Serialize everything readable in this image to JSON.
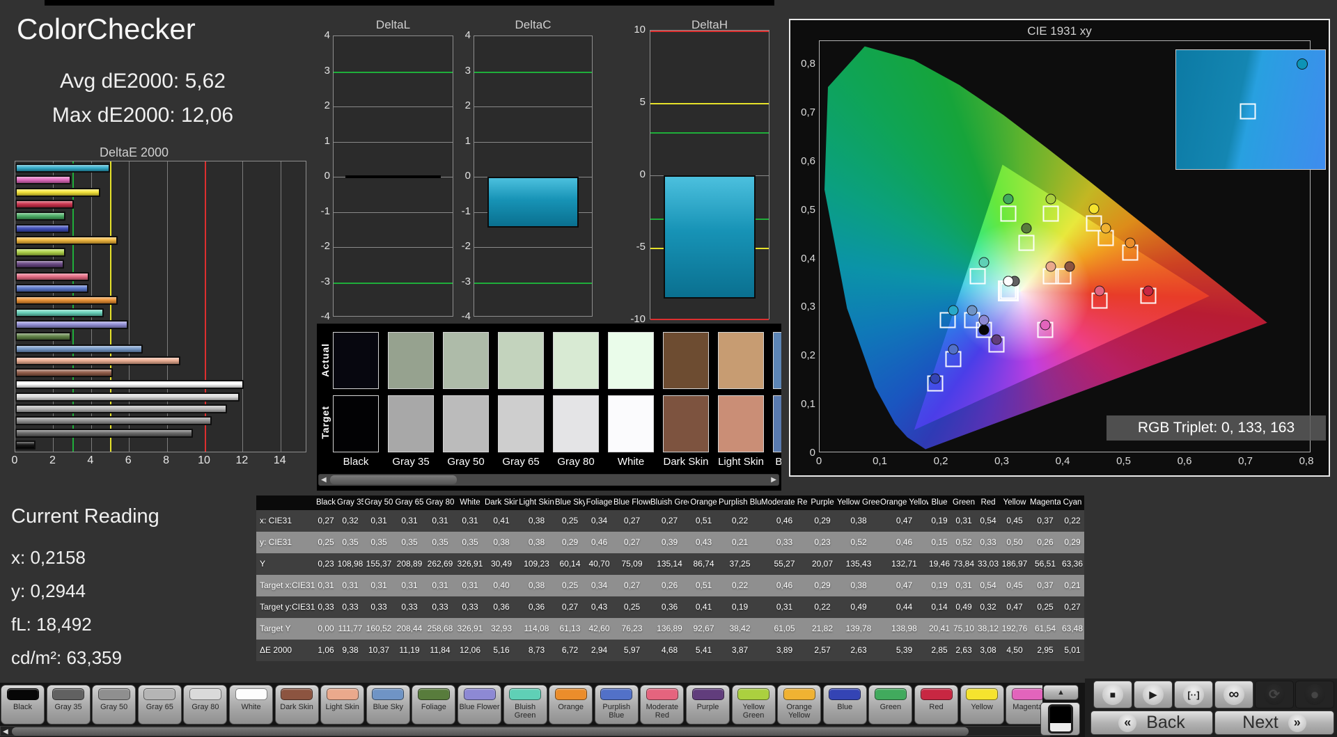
{
  "header": {
    "title": "ColorChecker",
    "avg_line": "Avg dE2000: 5,62",
    "max_line": "Max dE2000: 12,06"
  },
  "current_reading": {
    "title": "Current Reading",
    "x_line": "x: 0,2158",
    "y_line": "y: 0,2944",
    "fl_line": "fL: 18,492",
    "cd_line": "cd/m²: 63,359"
  },
  "patches": [
    {
      "name": "Black",
      "chip": "#060606",
      "actual_swatch": "#07070f",
      "target_swatch": "#020204",
      "x": 0.27,
      "y": 0.25,
      "Y": "0,23",
      "tx": 0.31,
      "ty": 0.33,
      "tY": "0,00",
      "de": 1.06
    },
    {
      "name": "Gray 35",
      "chip": "#616161",
      "actual_swatch": "#96a28f",
      "target_swatch": "#a8a8a8",
      "x": 0.32,
      "y": 0.35,
      "Y": "108,98",
      "tx": 0.31,
      "ty": 0.33,
      "tY": "111,77",
      "de": 9.38
    },
    {
      "name": "Gray 50",
      "chip": "#8f8f8f",
      "actual_swatch": "#aebba9",
      "target_swatch": "#bbbbbb",
      "x": 0.31,
      "y": 0.35,
      "Y": "155,37",
      "tx": 0.31,
      "ty": 0.33,
      "tY": "160,52",
      "de": 10.37
    },
    {
      "name": "Gray 65",
      "chip": "#b5b5b5",
      "actual_swatch": "#c3d3bd",
      "target_swatch": "#cecece",
      "x": 0.31,
      "y": 0.35,
      "Y": "208,89",
      "tx": 0.31,
      "ty": 0.33,
      "tY": "208,44",
      "de": 11.19
    },
    {
      "name": "Gray 80",
      "chip": "#dadada",
      "actual_swatch": "#d8ead3",
      "target_swatch": "#e4e4e6",
      "x": 0.31,
      "y": 0.35,
      "Y": "262,69",
      "tx": 0.31,
      "ty": 0.33,
      "tY": "258,68",
      "de": 11.84
    },
    {
      "name": "White",
      "chip": "#fdfdfd",
      "actual_swatch": "#eafcea",
      "target_swatch": "#fbfbfd",
      "x": 0.31,
      "y": 0.35,
      "Y": "326,91",
      "tx": 0.31,
      "ty": 0.33,
      "tY": "326,91",
      "de": 12.06
    },
    {
      "name": "Dark Skin",
      "chip": "#8c5440",
      "actual_swatch": "#6d4c31",
      "target_swatch": "#7d533f",
      "x": 0.41,
      "y": 0.38,
      "Y": "30,49",
      "tx": 0.4,
      "ty": 0.36,
      "tY": "32,93",
      "de": 5.16
    },
    {
      "name": "Light Skin",
      "chip": "#eaa98c",
      "actual_swatch": "#c79c72",
      "target_swatch": "#ca8e76",
      "x": 0.38,
      "y": 0.38,
      "Y": "109,23",
      "tx": 0.38,
      "ty": 0.36,
      "tY": "114,08",
      "de": 8.73
    },
    {
      "name": "Blue Sky",
      "chip": "#6f94c5",
      "actual_swatch": "#5c85b5",
      "target_swatch": "#597bb0",
      "x": 0.25,
      "y": 0.29,
      "Y": "60,14",
      "tx": 0.25,
      "ty": 0.27,
      "tY": "61,13",
      "de": 6.72
    },
    {
      "name": "Foliage",
      "chip": "#587c3c",
      "x": 0.34,
      "y": 0.46,
      "Y": "40,70",
      "tx": 0.34,
      "ty": 0.43,
      "tY": "42,60",
      "de": 2.94
    },
    {
      "name": "Blue Flower",
      "chip": "#8d89d4",
      "x": 0.27,
      "y": 0.27,
      "Y": "75,09",
      "tx": 0.27,
      "ty": 0.25,
      "tY": "76,23",
      "de": 5.97
    },
    {
      "name": "Bluish Green",
      "chip": "#5fd0b6",
      "x": 0.27,
      "y": 0.39,
      "Y": "135,14",
      "tx": 0.26,
      "ty": 0.36,
      "tY": "136,89",
      "de": 4.68
    },
    {
      "name": "Orange",
      "chip": "#eb8d2b",
      "x": 0.51,
      "y": 0.43,
      "Y": "86,74",
      "tx": 0.51,
      "ty": 0.41,
      "tY": "92,67",
      "de": 5.41
    },
    {
      "name": "Purplish Blue",
      "chip": "#5271c8",
      "x": 0.22,
      "y": 0.21,
      "Y": "37,25",
      "tx": 0.22,
      "ty": 0.19,
      "tY": "38,42",
      "de": 3.87
    },
    {
      "name": "Moderate Red",
      "chip": "#e5647e",
      "x": 0.46,
      "y": 0.33,
      "Y": "55,27",
      "tx": 0.46,
      "ty": 0.31,
      "tY": "61,05",
      "de": 3.89
    },
    {
      "name": "Purple",
      "chip": "#613d7c",
      "x": 0.29,
      "y": 0.23,
      "Y": "20,07",
      "tx": 0.29,
      "ty": 0.22,
      "tY": "21,82",
      "de": 2.57
    },
    {
      "name": "Yellow Green",
      "chip": "#abd03f",
      "x": 0.38,
      "y": 0.52,
      "Y": "135,43",
      "tx": 0.38,
      "ty": 0.49,
      "tY": "139,78",
      "de": 2.63
    },
    {
      "name": "Orange Yellow",
      "chip": "#f0b232",
      "x": 0.47,
      "y": 0.46,
      "Y": "132,71",
      "tx": 0.47,
      "ty": 0.44,
      "tY": "138,98",
      "de": 5.39
    },
    {
      "name": "Blue",
      "chip": "#3444b4",
      "x": 0.19,
      "y": 0.15,
      "Y": "19,46",
      "tx": 0.19,
      "ty": 0.14,
      "tY": "20,41",
      "de": 2.85
    },
    {
      "name": "Green",
      "chip": "#41aa5d",
      "x": 0.31,
      "y": 0.52,
      "Y": "73,84",
      "tx": 0.31,
      "ty": 0.49,
      "tY": "75,10",
      "de": 2.63
    },
    {
      "name": "Red",
      "chip": "#c82742",
      "x": 0.54,
      "y": 0.33,
      "Y": "33,03",
      "tx": 0.54,
      "ty": 0.32,
      "tY": "38,12",
      "de": 3.08
    },
    {
      "name": "Yellow",
      "chip": "#f5e32e",
      "x": 0.45,
      "y": 0.5,
      "Y": "186,97",
      "tx": 0.45,
      "ty": 0.47,
      "tY": "192,76",
      "de": 4.5
    },
    {
      "name": "Magenta",
      "chip": "#e264bc",
      "x": 0.37,
      "y": 0.26,
      "Y": "56,51",
      "tx": 0.37,
      "ty": 0.25,
      "tY": "61,54",
      "de": 2.95
    },
    {
      "name": "Cyan",
      "chip": "#28a8c8",
      "x": 0.22,
      "y": 0.29,
      "Y": "63,36",
      "tx": 0.21,
      "ty": 0.27,
      "tY": "63,48",
      "de": 5.01
    }
  ],
  "chart_data": [
    {
      "type": "bar",
      "orientation": "horizontal",
      "title": "DeltaE 2000",
      "categories": [
        "Cyan",
        "Magenta",
        "Yellow",
        "Red",
        "Green",
        "Blue",
        "Orange Yellow",
        "Yellow Green",
        "Purple",
        "Moderate Red",
        "Purplish Blue",
        "Orange",
        "Bluish Green",
        "Blue Flower",
        "Foliage",
        "Blue Sky",
        "Light Skin",
        "Dark Skin",
        "White",
        "Gray 80",
        "Gray 65",
        "Gray 50",
        "Gray 35",
        "Black"
      ],
      "values": [
        5.01,
        2.95,
        4.5,
        3.08,
        2.63,
        2.85,
        5.39,
        2.63,
        2.57,
        3.89,
        3.87,
        5.41,
        4.68,
        5.97,
        2.94,
        6.72,
        8.73,
        5.16,
        12.06,
        11.84,
        11.19,
        10.37,
        9.38,
        1.06
      ],
      "xlabel": "",
      "ylabel": "",
      "xlim": [
        0,
        15.4
      ],
      "x_ticks": [
        0,
        2,
        4,
        6,
        8,
        10,
        12,
        14
      ],
      "ref_lines": {
        "green": 3,
        "yellow": 5,
        "red": 10
      }
    },
    {
      "type": "bar",
      "title": "DeltaL",
      "values": [
        0.0
      ],
      "ylim": [
        -4,
        4
      ],
      "y_ticks": [
        4,
        3,
        2,
        1,
        0,
        -1,
        -2,
        -3,
        -4
      ],
      "ref_lines": {
        "green": [
          3,
          -3
        ]
      }
    },
    {
      "type": "bar",
      "title": "DeltaC",
      "values": [
        -1.45
      ],
      "ylim": [
        -4,
        4
      ],
      "y_ticks": [
        4,
        3,
        2,
        1,
        0,
        -1,
        -2,
        -3,
        -4
      ],
      "ref_lines": {
        "green": [
          3,
          -3
        ]
      }
    },
    {
      "type": "bar",
      "title": "DeltaH",
      "values": [
        -8.5
      ],
      "ylim": [
        -10,
        10
      ],
      "y_ticks": [
        10,
        5,
        0,
        -5,
        -10
      ],
      "ref_lines": {
        "green": [
          3,
          -3
        ],
        "yellow": [
          5,
          -5
        ],
        "red": [
          10,
          -10
        ]
      }
    },
    {
      "type": "scatter",
      "title": "CIE 1931 xy",
      "xlim": [
        0,
        0.805
      ],
      "ylim": [
        0,
        0.8444
      ],
      "note": "measured points = patches[].x/y (filled circles); target points = patches[].tx/ty (white outline squares)"
    }
  ],
  "cie": {
    "title": "CIE 1931 xy",
    "rgb_triplet": "RGB Triplet: 0, 133, 163",
    "x_ticks": [
      {
        "label": "0",
        "v": 0
      },
      {
        "label": "0,1",
        "v": 0.1
      },
      {
        "label": "0,2",
        "v": 0.2
      },
      {
        "label": "0,3",
        "v": 0.3
      },
      {
        "label": "0,4",
        "v": 0.4
      },
      {
        "label": "0,5",
        "v": 0.5
      },
      {
        "label": "0,6",
        "v": 0.6
      },
      {
        "label": "0,7",
        "v": 0.7
      },
      {
        "label": "0,8",
        "v": 0.8
      }
    ],
    "y_ticks": [
      {
        "label": "0,8",
        "v": 0.8
      },
      {
        "label": "0,7",
        "v": 0.7
      },
      {
        "label": "0,6",
        "v": 0.6
      },
      {
        "label": "0,5",
        "v": 0.5
      },
      {
        "label": "0,4",
        "v": 0.4
      },
      {
        "label": "0,3",
        "v": 0.3
      },
      {
        "label": "0,2",
        "v": 0.2
      },
      {
        "label": "0,1",
        "v": 0.1
      },
      {
        "label": "0",
        "v": 0
      }
    ]
  },
  "swatch_panel": {
    "row_labels": [
      "Actual",
      "Target"
    ],
    "visible_columns": 9,
    "scroll_left_icon": "◀",
    "scroll_right_icon": "▶"
  },
  "table": {
    "row_labels": [
      "x: CIE31",
      "y: CIE31",
      "Y",
      "Target x:CIE31",
      "Target y:CIE31",
      "Target Y",
      "ΔE 2000"
    ]
  },
  "toolbar": {
    "up_icon": "▲",
    "scroll_left_icon": "◀",
    "scroll_right_icon": "▶"
  },
  "transport": {
    "stop_icon": "■",
    "play_icon": "▶",
    "marker_icon": "[··]",
    "loop_icon": "∞",
    "refresh_icon": "⟳",
    "record_icon": "●",
    "back_label": "Back",
    "next_label": "Next",
    "back_icon": "«",
    "next_icon": "»"
  }
}
